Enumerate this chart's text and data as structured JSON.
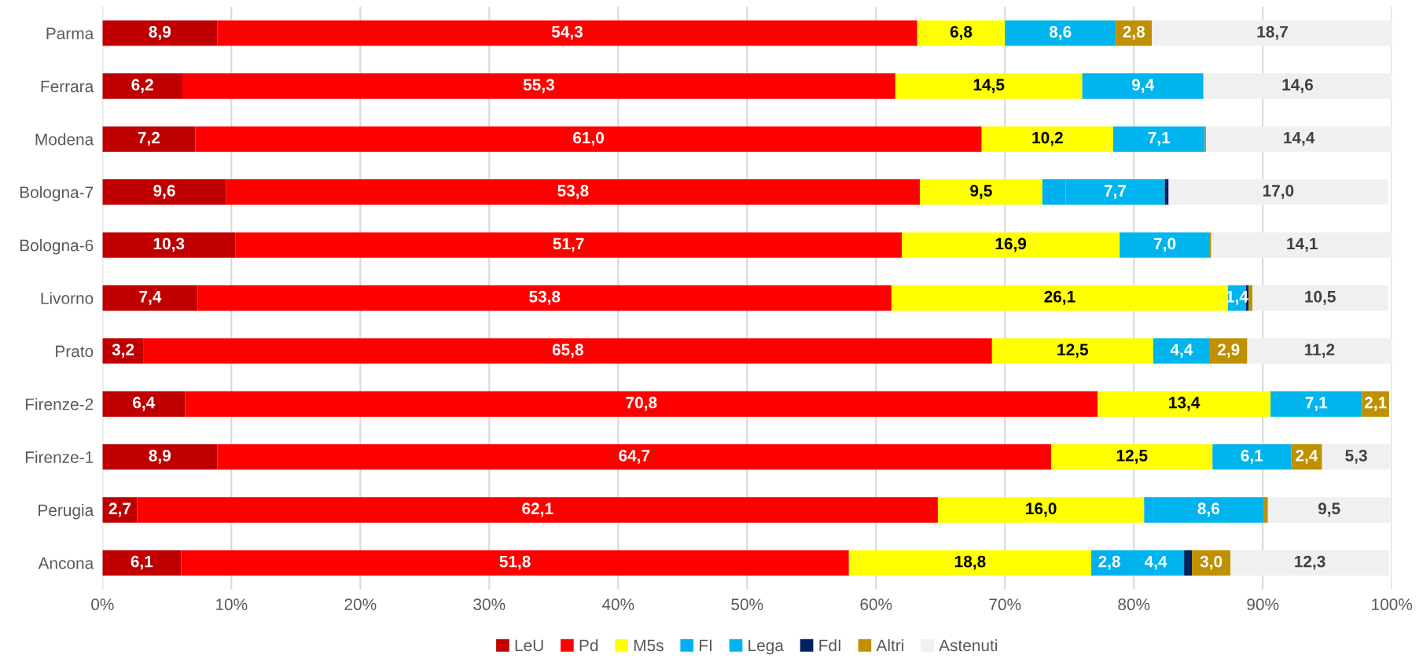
{
  "chart_data": {
    "type": "bar",
    "orientation": "horizontal",
    "stacked": true,
    "categories": [
      "Parma",
      "Ferrara",
      "Modena",
      "Bologna-7",
      "Bologna-6",
      "Livorno",
      "Prato",
      "Firenze-2",
      "Firenze-1",
      "Perugia",
      "Ancona"
    ],
    "series": [
      {
        "name": "LeU",
        "color": "#c00000",
        "values": [
          8.9,
          6.2,
          7.2,
          9.6,
          10.3,
          7.4,
          3.2,
          6.4,
          8.9,
          2.7,
          6.1
        ],
        "value_labels": [
          "8,9",
          "6,2",
          "7,2",
          "9,6",
          "10,3",
          "7,4",
          "3,2",
          "6,4",
          "8,9",
          "2,7",
          "6,1"
        ]
      },
      {
        "name": "Pd",
        "color": "#ff0000",
        "values": [
          54.3,
          55.3,
          61.0,
          53.8,
          51.7,
          53.8,
          65.8,
          70.8,
          64.7,
          62.1,
          51.8
        ],
        "value_labels": [
          "54,3",
          "55,3",
          "61,0",
          "53,8",
          "51,7",
          "53,8",
          "65,8",
          "70,8",
          "64,7",
          "62,1",
          "51,8"
        ]
      },
      {
        "name": "M5s",
        "color": "#ffff00",
        "values": [
          6.8,
          14.5,
          10.2,
          9.5,
          16.9,
          26.1,
          12.5,
          13.4,
          12.5,
          16.0,
          18.8
        ],
        "value_labels": [
          "6,8",
          "14,5",
          "10,2",
          "9,5",
          "16,9",
          "26,1",
          "12,5",
          "13,4",
          "12,5",
          "16,0",
          "18,8"
        ]
      },
      {
        "name": "FI",
        "color": "#00b0f0",
        "values": [
          null,
          null,
          null,
          1.8,
          null,
          null,
          null,
          null,
          null,
          0.7,
          2.8
        ],
        "value_labels": [
          null,
          null,
          null,
          null,
          null,
          null,
          null,
          null,
          null,
          null,
          "2,8"
        ]
      },
      {
        "name": "Lega",
        "color": "#00b4ee",
        "values": [
          8.6,
          9.4,
          7.1,
          7.7,
          7.0,
          1.4,
          4.4,
          7.1,
          6.1,
          8.6,
          4.4
        ],
        "value_labels": [
          "8,6",
          "9,4",
          "7,1",
          "7,7",
          "7,0",
          "1,4",
          "4,4",
          "7,1",
          "6,1",
          "8,6",
          "4,4"
        ]
      },
      {
        "name": "FdI",
        "color": "#002060",
        "values": [
          null,
          null,
          null,
          0.3,
          null,
          0.2,
          null,
          null,
          null,
          null,
          0.6
        ]
      },
      {
        "name": "Altri",
        "color": "#bf9000",
        "values": [
          2.8,
          null,
          0.1,
          null,
          0.1,
          0.3,
          2.9,
          2.1,
          2.4,
          0.3,
          3.0
        ],
        "value_labels": [
          "2,8",
          null,
          null,
          null,
          null,
          null,
          "2,9",
          "2,1",
          "2,4",
          null,
          "3,0"
        ]
      },
      {
        "name": "Astenuti",
        "color": "#f0f0f0",
        "values": [
          18.7,
          14.6,
          14.4,
          17.0,
          14.1,
          10.5,
          11.2,
          null,
          5.3,
          9.5,
          12.3
        ],
        "value_labels": [
          "18,7",
          "14,6",
          "14,4",
          "17,0",
          "14,1",
          "10,5",
          "11,2",
          null,
          "5,3",
          "9,5",
          "12,3"
        ]
      }
    ],
    "xlim": [
      0,
      100
    ],
    "xticks": [
      {
        "value": 0,
        "label": "0%"
      },
      {
        "value": 10,
        "label": "10%"
      },
      {
        "value": 20,
        "label": "20%"
      },
      {
        "value": 30,
        "label": "30%"
      },
      {
        "value": 40,
        "label": "40%"
      },
      {
        "value": 50,
        "label": "50%"
      },
      {
        "value": 60,
        "label": "60%"
      },
      {
        "value": 70,
        "label": "70%"
      },
      {
        "value": 80,
        "label": "80%"
      },
      {
        "value": 90,
        "label": "90%"
      },
      {
        "value": 100,
        "label": "100%"
      }
    ],
    "grid": "x",
    "legend": "bottom"
  }
}
